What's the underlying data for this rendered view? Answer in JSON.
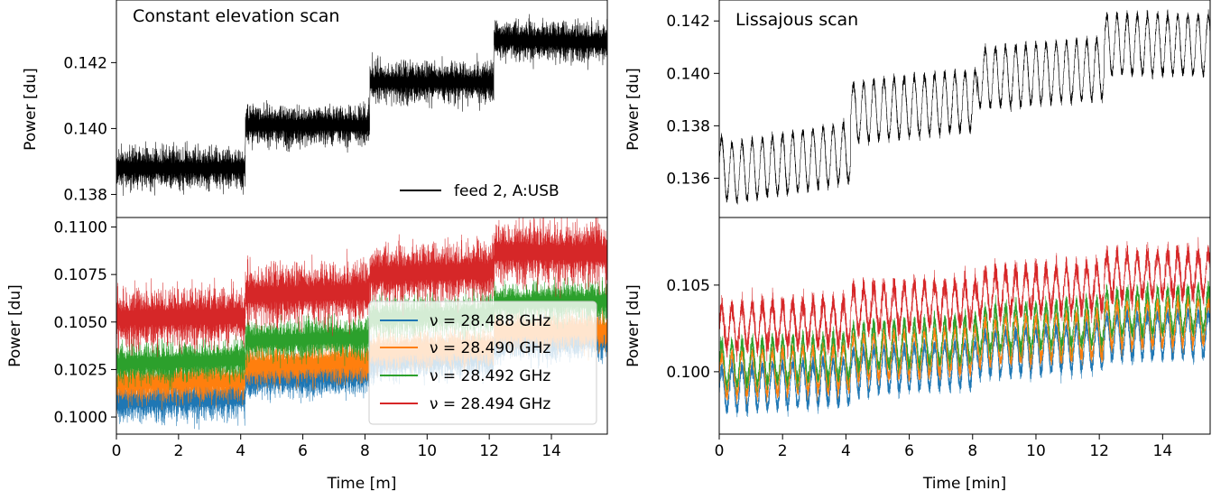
{
  "figure": {
    "colors": {
      "black": "#000000",
      "blue": "#1f77b4",
      "orange": "#ff7f0e",
      "green": "#2ca02c",
      "red": "#d62728"
    }
  },
  "chart_data": [
    {
      "id": "ces-top",
      "type": "line",
      "title": "Constant elevation scan",
      "xlabel": "",
      "ylabel": "Power [du]",
      "xlim": [
        0,
        15.8
      ],
      "ylim": [
        0.1373,
        0.1439
      ],
      "yticks": [
        0.138,
        0.14,
        0.142
      ],
      "yticklabels": [
        "0.138",
        "0.140",
        "0.142"
      ],
      "legend_position": "lower-right",
      "series": [
        {
          "name": "feed 2, A:USB",
          "color": "#000000",
          "noise": 0.00035,
          "step_x": [
            0,
            4.15,
            4.15,
            8.15,
            8.15,
            12.15,
            12.15,
            15.8
          ],
          "step_y": [
            0.1388,
            0.1388,
            0.1401,
            0.1401,
            0.1414,
            0.1414,
            0.1427,
            0.1426
          ]
        }
      ]
    },
    {
      "id": "ces-bottom",
      "type": "line",
      "xlabel": "Time [m]",
      "ylabel": "Power [du]",
      "xlim": [
        0,
        15.8
      ],
      "ylim": [
        0.0991,
        0.1105
      ],
      "xticks": [
        0,
        2,
        4,
        6,
        8,
        10,
        12,
        14
      ],
      "xticklabels": [
        "0",
        "2",
        "4",
        "6",
        "8",
        "10",
        "12",
        "14"
      ],
      "yticks": [
        0.1,
        0.1025,
        0.105,
        0.1075,
        0.11
      ],
      "yticklabels": [
        "0.1000",
        "0.1025",
        "0.1050",
        "0.1075",
        "0.1100"
      ],
      "legend_position": "lower-right",
      "series": [
        {
          "name": "ν = 28.488 GHz",
          "color": "#1f77b4",
          "noise": 0.0006,
          "step_x": [
            0,
            4.15,
            4.15,
            8.15,
            8.15,
            12.15,
            12.15,
            15.8
          ],
          "step_y": [
            0.1008,
            0.101,
            0.102,
            0.1022,
            0.103,
            0.1032,
            0.104,
            0.1041
          ]
        },
        {
          "name": "ν = 28.490 GHz",
          "color": "#ff7f0e",
          "noise": 0.0006,
          "step_x": [
            0,
            4.15,
            4.15,
            8.15,
            8.15,
            12.15,
            12.15,
            15.8
          ],
          "step_y": [
            0.1018,
            0.1019,
            0.1027,
            0.1029,
            0.1035,
            0.1037,
            0.1045,
            0.1046
          ]
        },
        {
          "name": "ν = 28.492 GHz",
          "color": "#2ca02c",
          "noise": 0.0006,
          "step_x": [
            0,
            4.15,
            4.15,
            8.15,
            8.15,
            12.15,
            12.15,
            15.8
          ],
          "step_y": [
            0.1028,
            0.103,
            0.104,
            0.1042,
            0.1052,
            0.1054,
            0.106,
            0.1061
          ]
        },
        {
          "name": "ν = 28.494 GHz",
          "color": "#d62728",
          "noise": 0.0009,
          "step_x": [
            0,
            4.15,
            4.15,
            8.15,
            8.15,
            12.15,
            12.15,
            15.8
          ],
          "step_y": [
            0.1052,
            0.1053,
            0.1064,
            0.1066,
            0.1075,
            0.1077,
            0.1087,
            0.1086
          ]
        }
      ]
    },
    {
      "id": "liss-top",
      "type": "line",
      "title": "Lissajous scan",
      "xlabel": "",
      "ylabel": "Power [du]",
      "xlim": [
        0,
        15.5
      ],
      "ylim": [
        0.1345,
        0.1428
      ],
      "yticks": [
        0.136,
        0.138,
        0.14,
        0.142
      ],
      "yticklabels": [
        "0.136",
        "0.138",
        "0.140",
        "0.142"
      ],
      "series": [
        {
          "name": "",
          "color": "#000000",
          "osc_period_min": 0.32,
          "osc_amplitude": 0.0011,
          "noise": 0.00012,
          "step_x": [
            0,
            0.4,
            4.15,
            4.15,
            8.15,
            8.15,
            12.15,
            12.15,
            15.5
          ],
          "step_y": [
            0.1365,
            0.1362,
            0.137,
            0.1385,
            0.139,
            0.1398,
            0.1402,
            0.1411,
            0.1411
          ]
        }
      ]
    },
    {
      "id": "liss-bottom",
      "type": "line",
      "xlabel": "Time [min]",
      "ylabel": "Power [du]",
      "xlim": [
        0,
        15.5
      ],
      "ylim": [
        0.0964,
        0.1089
      ],
      "xticks": [
        0,
        2,
        4,
        6,
        8,
        10,
        12,
        14
      ],
      "xticklabels": [
        "0",
        "2",
        "4",
        "6",
        "8",
        "10",
        "12",
        "14"
      ],
      "yticks": [
        0.1,
        0.105
      ],
      "yticklabels": [
        "0.100",
        "0.105"
      ],
      "series": [
        {
          "name": "ν = 28.488 GHz",
          "color": "#1f77b4",
          "osc_period_min": 0.32,
          "osc_amplitude": 0.0012,
          "noise": 0.0003,
          "step_x": [
            0,
            4.15,
            4.15,
            8.15,
            8.15,
            12.15,
            12.15,
            15.5
          ],
          "step_y": [
            0.099,
            0.0995,
            0.1,
            0.1005,
            0.101,
            0.1015,
            0.102,
            0.1022
          ]
        },
        {
          "name": "ν = 28.490 GHz",
          "color": "#ff7f0e",
          "osc_period_min": 0.32,
          "osc_amplitude": 0.0012,
          "noise": 0.0003,
          "step_x": [
            0,
            4.15,
            4.15,
            8.15,
            8.15,
            12.15,
            12.15,
            15.5
          ],
          "step_y": [
            0.0998,
            0.1003,
            0.1008,
            0.1013,
            0.1017,
            0.1022,
            0.1027,
            0.1029
          ]
        },
        {
          "name": "ν = 28.492 GHz",
          "color": "#2ca02c",
          "osc_period_min": 0.32,
          "osc_amplitude": 0.0012,
          "noise": 0.0003,
          "step_x": [
            0,
            4.15,
            4.15,
            8.15,
            8.15,
            12.15,
            12.15,
            15.5
          ],
          "step_y": [
            0.1004,
            0.1009,
            0.1014,
            0.1019,
            0.1024,
            0.1029,
            0.1034,
            0.1036
          ]
        },
        {
          "name": "ν = 28.494 GHz",
          "color": "#d62728",
          "osc_period_min": 0.32,
          "osc_amplitude": 0.0012,
          "noise": 0.0004,
          "step_x": [
            0,
            4.15,
            4.15,
            8.15,
            8.15,
            12.15,
            12.15,
            15.5
          ],
          "step_y": [
            0.1026,
            0.1029,
            0.1036,
            0.104,
            0.1045,
            0.1049,
            0.1055,
            0.1057
          ]
        }
      ]
    }
  ]
}
